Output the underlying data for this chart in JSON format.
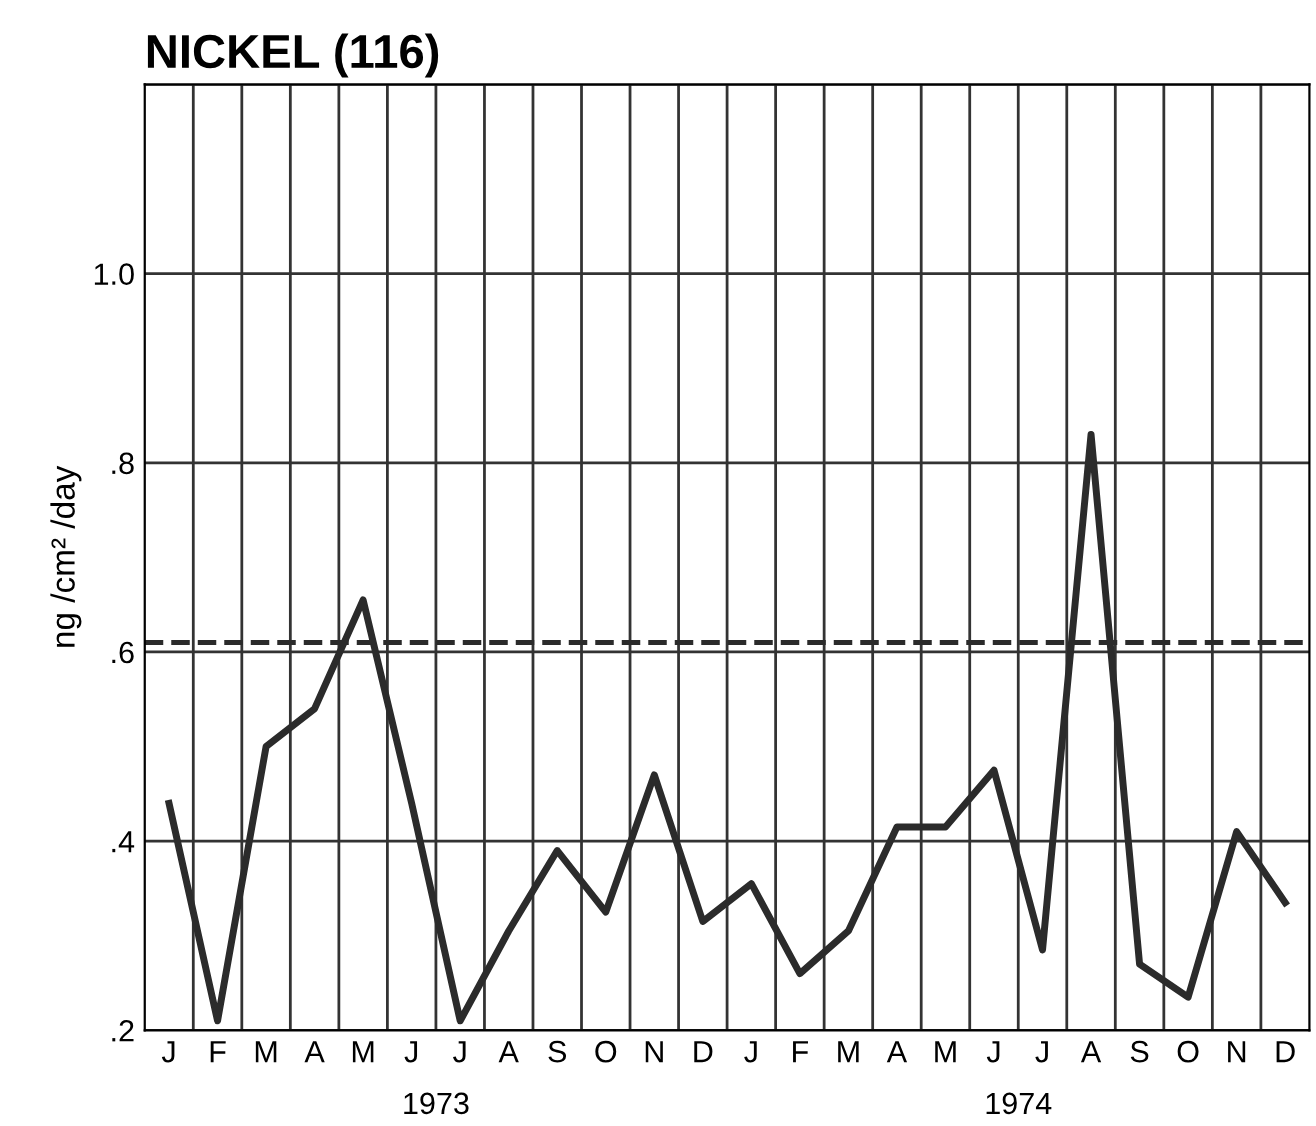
{
  "chart_data": {
    "type": "line",
    "title": "NICKEL (116)",
    "ylabel": "ng /cm² /day",
    "categories": [
      "J",
      "F",
      "M",
      "A",
      "M",
      "J",
      "J",
      "A",
      "S",
      "O",
      "N",
      "D",
      "J",
      "F",
      "M",
      "A",
      "M",
      "J",
      "J",
      "A",
      "S",
      "O",
      "N",
      "D"
    ],
    "series": [
      {
        "color": "#2b2b2b",
        "values": [
          0.44,
          0.21,
          0.5,
          0.54,
          0.655,
          0.44,
          0.21,
          0.305,
          0.39,
          0.325,
          0.47,
          0.315,
          0.355,
          0.26,
          0.305,
          0.415,
          0.415,
          0.475,
          0.285,
          0.83,
          0.27,
          0.235,
          0.41,
          0.335
        ]
      }
    ],
    "ylim": [
      0.2,
      1.2
    ],
    "yticks": [
      {
        "value": 0.2,
        "label": ".2"
      },
      {
        "value": 0.4,
        "label": ".4"
      },
      {
        "value": 0.6,
        "label": ".6"
      },
      {
        "value": 0.8,
        "label": ".8"
      },
      {
        "value": 1.0,
        "label": "1.0"
      },
      {
        "value": 1.2,
        "label": null
      }
    ],
    "ref_lines": [
      {
        "axis": "y",
        "value": 0.61,
        "line_style": "dashed",
        "color": "#2b2b2b"
      }
    ],
    "annotations": [
      "1973",
      "1974"
    ],
    "grid": true,
    "marker": "none",
    "line_style": "solid"
  }
}
